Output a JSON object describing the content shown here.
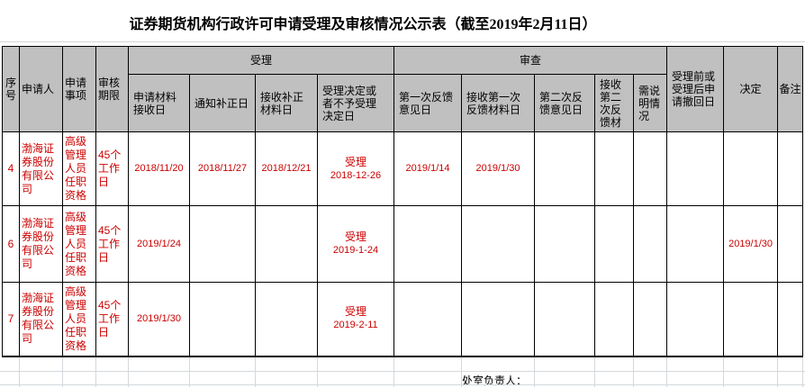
{
  "title": "证券期货机构行政许可申请受理及审核情况公示表（截至2019年2月11日）",
  "table": {
    "headers": {
      "seq": "序号",
      "applicant": "申请人",
      "matter": "申请事项",
      "period": "审核期限",
      "acceptance_group": "受理",
      "review_group": "审查",
      "material_received": "申请材料接收日",
      "correction_notice": "通知补正日",
      "correction_received": "接收补正材料日",
      "acceptance_decision": "受理决定或者不予受理决定日",
      "first_feedback": "第一次反馈意见日",
      "first_feedback_received": "接收第一次反馈材料日",
      "second_feedback": "第二次反馈意见日",
      "second_feedback_received": "接收第二次反馈材",
      "explanation": "需说明情况",
      "withdrawal": "受理前或受理后申请撤回日",
      "decision": "决定",
      "remarks": "备注"
    },
    "rows": [
      {
        "seq": "4",
        "applicant": "渤海证券股份有限公司",
        "matter": "高级管理人员任职资格",
        "period": "45个工作日",
        "material_received": "2018/11/20",
        "correction_notice": "2018/11/27",
        "correction_received": "2018/12/21",
        "acceptance_label": "受理",
        "acceptance_date": "2018-12-26",
        "first_feedback": "2019/1/14",
        "first_feedback_received": "2019/1/30",
        "second_feedback": "",
        "second_feedback_received": "",
        "explanation": "",
        "withdrawal": "",
        "decision": "",
        "remarks": ""
      },
      {
        "seq": "6",
        "applicant": "渤海证券股份有限公司",
        "matter": "高级管理人员任职资格",
        "period": "45个工作日",
        "material_received": "2019/1/24",
        "correction_notice": "",
        "correction_received": "",
        "acceptance_label": "受理",
        "acceptance_date": "2019-1-24",
        "first_feedback": "",
        "first_feedback_received": "",
        "second_feedback": "",
        "second_feedback_received": "",
        "explanation": "",
        "withdrawal": "",
        "decision": "2019/1/30",
        "remarks": ""
      },
      {
        "seq": "7",
        "applicant": "渤海证券股份有限公司",
        "matter": "高级管理人员任职资格",
        "period": "45个工作日",
        "material_received": "2019/1/30",
        "correction_notice": "",
        "correction_received": "",
        "acceptance_label": "受理",
        "acceptance_date": "2019-2-11",
        "first_feedback": "",
        "first_feedback_received": "",
        "second_feedback": "",
        "second_feedback_received": "",
        "explanation": "",
        "withdrawal": "",
        "decision": "",
        "remarks": ""
      }
    ]
  },
  "footer": {
    "label": "处室负责人："
  },
  "colors": {
    "header_bg": "#c0c0c0",
    "data_text": "#cc0000",
    "border": "#000000",
    "gridline": "#d4d8dc"
  }
}
